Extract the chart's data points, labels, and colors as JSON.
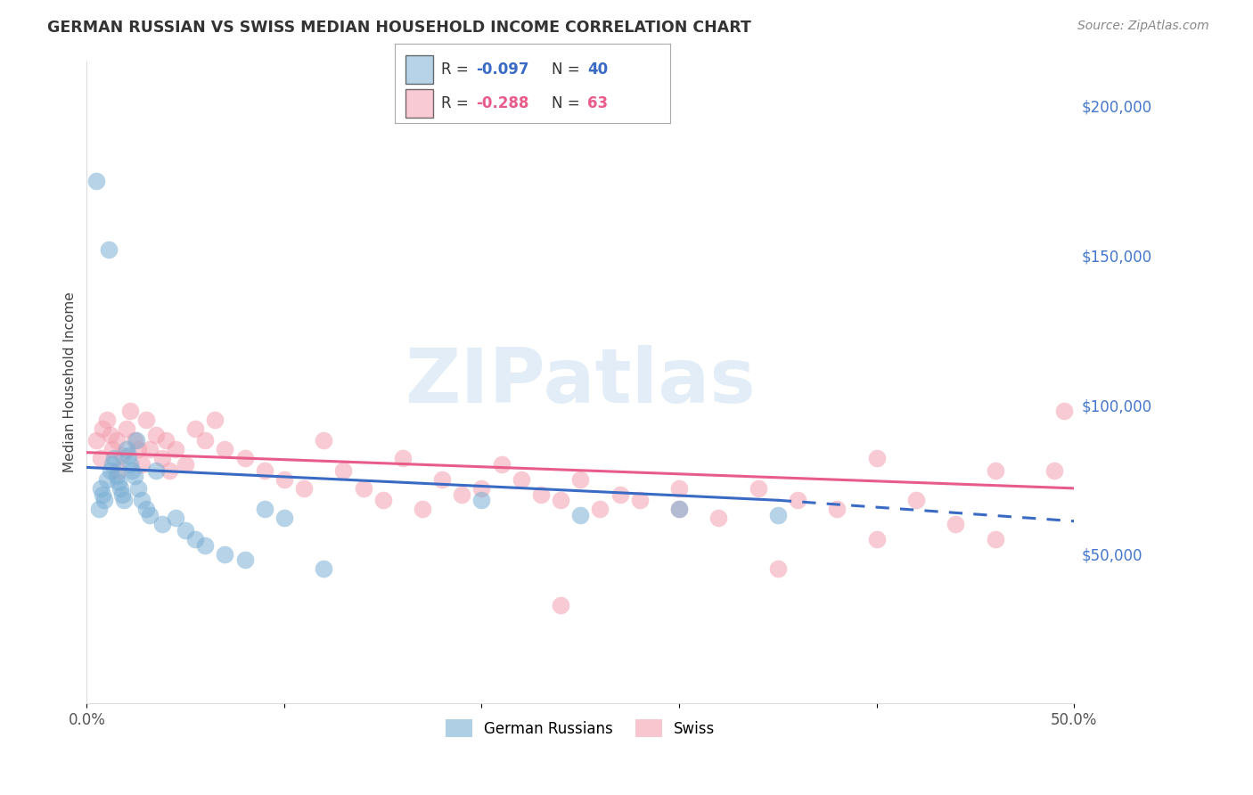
{
  "title": "GERMAN RUSSIAN VS SWISS MEDIAN HOUSEHOLD INCOME CORRELATION CHART",
  "source": "Source: ZipAtlas.com",
  "ylabel": "Median Household Income",
  "y_ticks": [
    50000,
    100000,
    150000,
    200000
  ],
  "y_tick_labels": [
    "$50,000",
    "$100,000",
    "$150,000",
    "$200,000"
  ],
  "xlim": [
    0.0,
    50.0
  ],
  "ylim": [
    0,
    215000
  ],
  "blue_color": "#7BAFD4",
  "pink_color": "#F4A0B0",
  "blue_line_color": "#3A6BC4",
  "pink_line_color": "#E85C8A",
  "watermark": "ZIPatlas",
  "blue_line_x0": 0,
  "blue_line_y0": 79000,
  "blue_line_x1": 35,
  "blue_line_y1": 68000,
  "blue_dash_x0": 35,
  "blue_dash_y0": 68000,
  "blue_dash_x1": 50,
  "blue_dash_y1": 61000,
  "pink_line_x0": 0,
  "pink_line_y0": 84000,
  "pink_line_x1": 50,
  "pink_line_y1": 72000,
  "blue_scatter_x": [
    0.5,
    0.6,
    0.7,
    0.8,
    0.9,
    1.0,
    1.1,
    1.2,
    1.3,
    1.4,
    1.5,
    1.6,
    1.7,
    1.8,
    1.9,
    2.0,
    2.1,
    2.2,
    2.3,
    2.4,
    2.5,
    2.6,
    2.8,
    3.0,
    3.2,
    3.5,
    3.8,
    4.5,
    5.0,
    5.5,
    6.0,
    7.0,
    8.0,
    9.0,
    10.0,
    12.0,
    20.0,
    25.0,
    30.0,
    35.0
  ],
  "blue_scatter_y": [
    175000,
    65000,
    72000,
    70000,
    68000,
    75000,
    152000,
    78000,
    80000,
    82000,
    76000,
    74000,
    72000,
    70000,
    68000,
    85000,
    83000,
    80000,
    78000,
    76000,
    88000,
    72000,
    68000,
    65000,
    63000,
    78000,
    60000,
    62000,
    58000,
    55000,
    53000,
    50000,
    48000,
    65000,
    62000,
    45000,
    68000,
    63000,
    65000,
    63000
  ],
  "pink_scatter_x": [
    0.5,
    0.7,
    0.8,
    1.0,
    1.2,
    1.3,
    1.5,
    1.6,
    1.8,
    2.0,
    2.2,
    2.4,
    2.6,
    2.8,
    3.0,
    3.2,
    3.5,
    3.8,
    4.0,
    4.2,
    4.5,
    5.0,
    5.5,
    6.0,
    6.5,
    7.0,
    8.0,
    9.0,
    10.0,
    11.0,
    12.0,
    13.0,
    14.0,
    15.0,
    16.0,
    17.0,
    18.0,
    19.0,
    20.0,
    21.0,
    22.0,
    23.0,
    24.0,
    25.0,
    26.0,
    27.0,
    28.0,
    30.0,
    32.0,
    34.0,
    36.0,
    38.0,
    40.0,
    42.0,
    44.0,
    46.0,
    24.0,
    30.0,
    35.0,
    40.0,
    46.0,
    49.0,
    49.5
  ],
  "pink_scatter_y": [
    88000,
    82000,
    92000,
    95000,
    90000,
    85000,
    88000,
    78000,
    83000,
    92000,
    98000,
    88000,
    85000,
    80000,
    95000,
    85000,
    90000,
    82000,
    88000,
    78000,
    85000,
    80000,
    92000,
    88000,
    95000,
    85000,
    82000,
    78000,
    75000,
    72000,
    88000,
    78000,
    72000,
    68000,
    82000,
    65000,
    75000,
    70000,
    72000,
    80000,
    75000,
    70000,
    68000,
    75000,
    65000,
    70000,
    68000,
    65000,
    62000,
    72000,
    68000,
    65000,
    55000,
    68000,
    60000,
    78000,
    33000,
    72000,
    45000,
    82000,
    55000,
    78000,
    98000
  ]
}
